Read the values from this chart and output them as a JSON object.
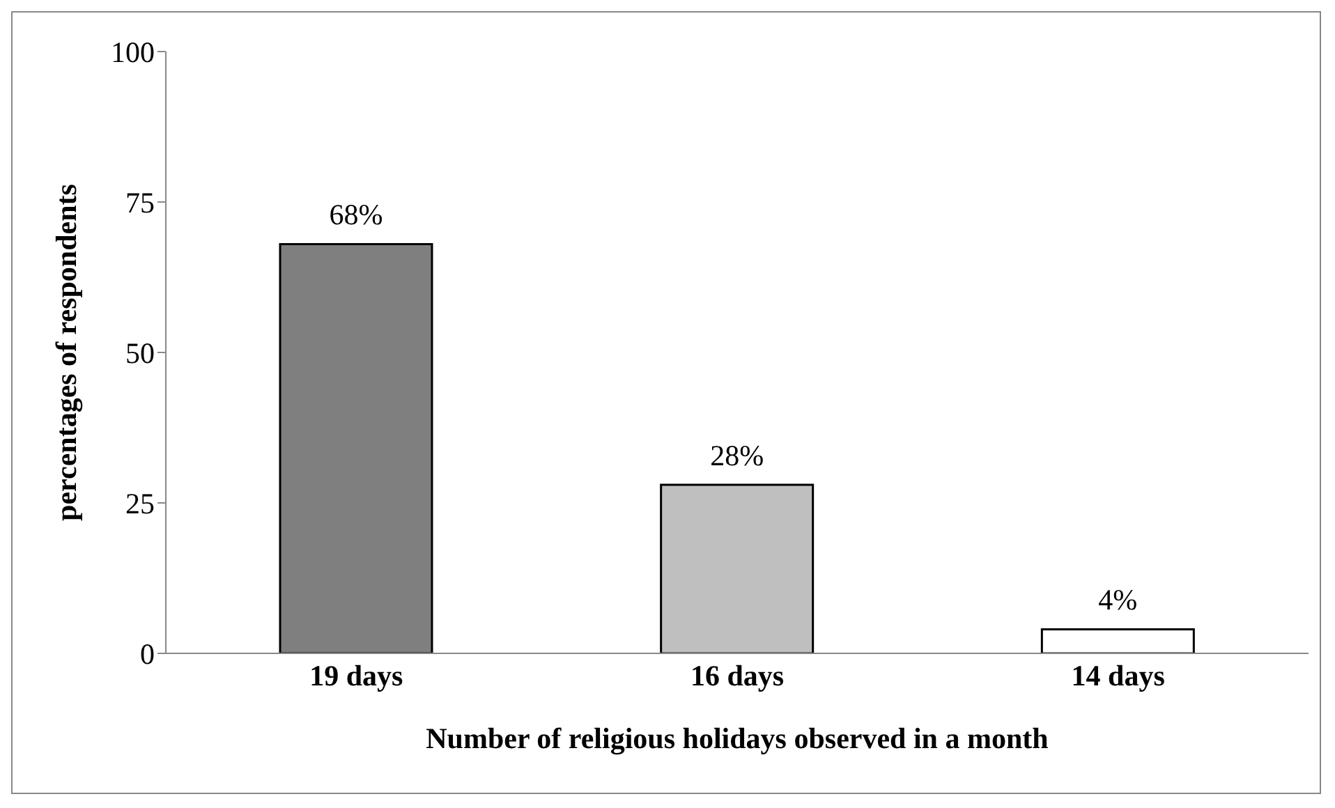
{
  "chart_data": {
    "type": "bar",
    "xlabel": "Number of religious holidays observed in a month",
    "ylabel": "percentages of respondents",
    "categories": [
      "19 days",
      "16 days",
      "14 days"
    ],
    "values": [
      68,
      28,
      4
    ],
    "colors": [
      "#7f7f7f",
      "#bfbfbf",
      "#ffffff"
    ],
    "value_labels": [
      "68%",
      "28%",
      "4%"
    ],
    "ylim": [
      0,
      100
    ],
    "yticks": [
      0,
      25,
      50,
      75,
      100
    ]
  }
}
